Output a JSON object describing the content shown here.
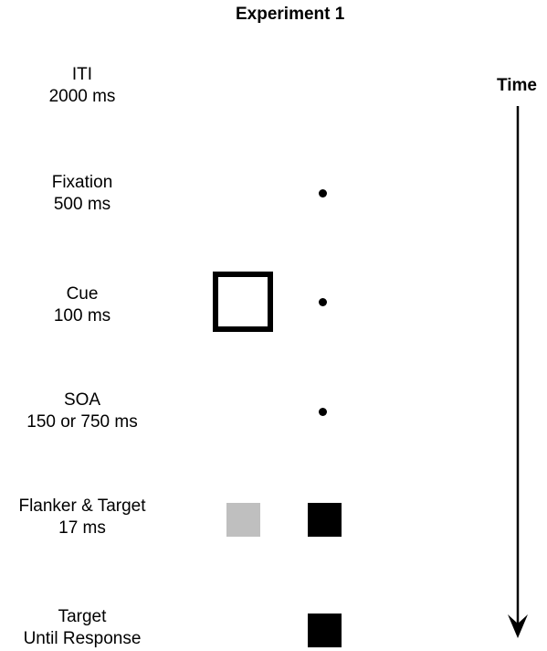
{
  "title": "Experiment 1",
  "time_label": "Time",
  "steps": [
    {
      "name": "ITI",
      "duration": "2000 ms"
    },
    {
      "name": "Fixation",
      "duration": "500 ms"
    },
    {
      "name": "Cue",
      "duration": "100 ms"
    },
    {
      "name": "SOA",
      "duration": "150 or 750 ms"
    },
    {
      "name": "Flanker & Target",
      "duration": "17 ms"
    },
    {
      "name": "Target",
      "duration": "Until Response"
    }
  ],
  "colors": {
    "flanker": "#bfbfbf",
    "target": "#000000",
    "fixation": "#000000"
  }
}
